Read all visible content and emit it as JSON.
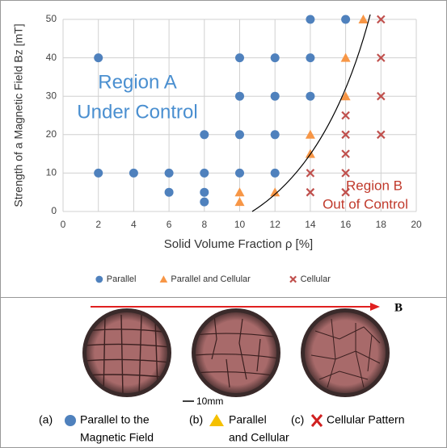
{
  "chart_data": {
    "type": "scatter",
    "xlabel": "Solid Volume Fraction ρ  [%]",
    "ylabel": "Strength of a Magnetic Field Bz [mT]",
    "xlim": [
      0,
      20
    ],
    "xticks": [
      0,
      2,
      4,
      6,
      8,
      10,
      12,
      14,
      16,
      18,
      20
    ],
    "ylim": [
      0,
      50
    ],
    "yticks": [
      0,
      10,
      20,
      30,
      40,
      50
    ],
    "grid": true,
    "legend": "bottom",
    "annotations": [
      "Region A",
      "Under Control",
      "Region B",
      "Out of Control"
    ],
    "series": [
      {
        "name": "Parallel",
        "color": "#4f81bd",
        "marker": "circle",
        "x": [
          2,
          2,
          4,
          6,
          6,
          8,
          8,
          8,
          8,
          10,
          10,
          10,
          10,
          12,
          12,
          12,
          12,
          14,
          14,
          14,
          16
        ],
        "values": [
          40,
          10,
          10,
          10,
          5,
          20,
          10,
          5,
          2.5,
          40,
          30,
          20,
          10,
          40,
          30,
          20,
          10,
          50,
          40,
          30,
          50
        ]
      },
      {
        "name": "Parallel and Cellular",
        "color": "#f79646",
        "marker": "triangle",
        "x": [
          10,
          10,
          12,
          14,
          14,
          16,
          16,
          17
        ],
        "values": [
          5,
          2.5,
          5,
          20,
          15,
          40,
          30,
          50
        ]
      },
      {
        "name": "Cellular",
        "color": "#c0504d",
        "marker": "x",
        "x": [
          14,
          14,
          16,
          16,
          16,
          16,
          16,
          18,
          18,
          18,
          18
        ],
        "values": [
          10,
          5,
          25,
          20,
          15,
          10,
          5,
          50,
          40,
          30,
          20
        ]
      }
    ]
  },
  "figure": {
    "arrow_label": "B",
    "scale_label": "10mm",
    "captions": [
      {
        "label": "(a)",
        "lines": [
          "Parallel to the",
          "Magnetic Field"
        ]
      },
      {
        "label": "(b)",
        "lines": [
          "Parallel",
          "and Cellular"
        ]
      },
      {
        "label": "(c)",
        "lines": [
          "Cellular Pattern"
        ]
      }
    ]
  }
}
